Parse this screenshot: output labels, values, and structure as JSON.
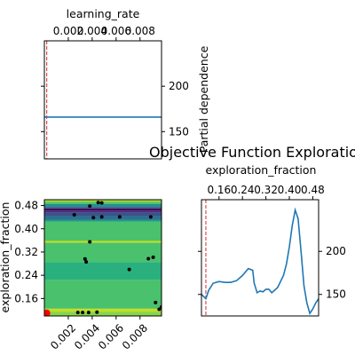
{
  "title": "Objective Function Exploration",
  "chart_data": [
    {
      "type": "line",
      "name": "pd-learning-rate",
      "xlabel": "learning_rate",
      "ylabel": "Partial dependence",
      "xlim": [
        0.0,
        0.0098
      ],
      "ylim": [
        120,
        250
      ],
      "xticks": [
        0.002,
        0.004,
        0.006,
        0.008
      ],
      "xtick_labels": [
        "0.002",
        "0.004",
        "0.006",
        "0.008"
      ],
      "yticks": [
        150,
        200
      ],
      "ytick_labels": [
        "150",
        "200"
      ],
      "x": [
        0.0,
        0.0098
      ],
      "y": [
        166,
        166
      ],
      "vline": 0.0002,
      "line_color": "#1f77b4",
      "vline_color": "#d62728"
    },
    {
      "type": "heatmap",
      "name": "contour-learning-rate-vs-exploration-fraction",
      "xlabel": "",
      "ylabel": "exploration_fraction",
      "xlim": [
        0.0,
        0.0098
      ],
      "ylim": [
        0.1,
        0.5
      ],
      "xticks": [
        0.002,
        0.004,
        0.006,
        0.008
      ],
      "xtick_labels": [
        "0.002",
        "0.004",
        "0.006",
        "0.008"
      ],
      "yticks": [
        0.16,
        0.24,
        0.32,
        0.4,
        0.48
      ],
      "ytick_labels": [
        "0.16",
        "0.24",
        "0.32",
        "0.40",
        "0.48"
      ],
      "bands": [
        {
          "from": 0.1,
          "to": 0.115,
          "color": "#87d549"
        },
        {
          "from": 0.115,
          "to": 0.125,
          "color": "#c2df23"
        },
        {
          "from": 0.125,
          "to": 0.225,
          "color": "#4ac16d"
        },
        {
          "from": 0.225,
          "to": 0.285,
          "color": "#2ab07f"
        },
        {
          "from": 0.285,
          "to": 0.352,
          "color": "#4ac16d"
        },
        {
          "from": 0.352,
          "to": 0.356,
          "color": "#c2df23"
        },
        {
          "from": 0.356,
          "to": 0.425,
          "color": "#4ac16d"
        },
        {
          "from": 0.425,
          "to": 0.43,
          "color": "#1e9b8a"
        },
        {
          "from": 0.43,
          "to": 0.445,
          "color": "#2c728e"
        },
        {
          "from": 0.445,
          "to": 0.455,
          "color": "#3b528b"
        },
        {
          "from": 0.455,
          "to": 0.463,
          "color": "#472d7b"
        },
        {
          "from": 0.463,
          "to": 0.47,
          "color": "#440154"
        },
        {
          "from": 0.47,
          "to": 0.478,
          "color": "#31688e"
        },
        {
          "from": 0.478,
          "to": 0.486,
          "color": "#21918c"
        },
        {
          "from": 0.486,
          "to": 0.494,
          "color": "#5ec962"
        },
        {
          "from": 0.494,
          "to": 0.5,
          "color": "#b5de2b"
        }
      ],
      "hline": {
        "y": 0.356,
        "color": "#c2df23"
      },
      "points": [
        [
          0.0002,
          0.11
        ],
        [
          0.0025,
          0.448
        ],
        [
          0.0038,
          0.478
        ],
        [
          0.0045,
          0.49
        ],
        [
          0.0048,
          0.489
        ],
        [
          0.0041,
          0.438
        ],
        [
          0.0034,
          0.296
        ],
        [
          0.0035,
          0.286
        ],
        [
          0.0038,
          0.355
        ],
        [
          0.0048,
          0.441
        ],
        [
          0.0063,
          0.441
        ],
        [
          0.0071,
          0.26
        ],
        [
          0.0089,
          0.441
        ],
        [
          0.0087,
          0.297
        ],
        [
          0.0091,
          0.302
        ],
        [
          0.0093,
          0.146
        ],
        [
          0.0096,
          0.123
        ],
        [
          0.0098,
          0.131
        ],
        [
          0.0028,
          0.112
        ],
        [
          0.0032,
          0.112
        ],
        [
          0.0037,
          0.112
        ],
        [
          0.0044,
          0.113
        ]
      ],
      "points_color": "#000000",
      "best_point": [
        0.0002,
        0.11
      ],
      "best_color": "#ff0000"
    },
    {
      "type": "line",
      "name": "pd-exploration-fraction",
      "xlabel": "exploration_fraction",
      "ylabel": "",
      "xlim": [
        0.1,
        0.5
      ],
      "ylim": [
        125,
        260
      ],
      "xticks": [
        0.16,
        0.24,
        0.32,
        0.4,
        0.48
      ],
      "xtick_labels": [
        "0.16",
        "0.24",
        "0.32",
        "0.40",
        "0.48"
      ],
      "yticks": [
        150,
        200
      ],
      "ytick_labels": [
        "150",
        "200"
      ],
      "x": [
        0.1,
        0.115,
        0.125,
        0.14,
        0.16,
        0.18,
        0.2,
        0.22,
        0.24,
        0.26,
        0.275,
        0.28,
        0.29,
        0.3,
        0.31,
        0.32,
        0.33,
        0.34,
        0.36,
        0.38,
        0.39,
        0.4,
        0.41,
        0.42,
        0.43,
        0.44,
        0.45,
        0.46,
        0.47,
        0.48,
        0.49,
        0.5
      ],
      "y": [
        150,
        145,
        155,
        163,
        165,
        164,
        164,
        166,
        172,
        180,
        178,
        163,
        152,
        154,
        153,
        156,
        156,
        152,
        158,
        172,
        185,
        205,
        230,
        248,
        238,
        200,
        160,
        140,
        128,
        133,
        140,
        145
      ],
      "vline": 0.115,
      "line_color": "#1f77b4",
      "vline_color": "#d62728"
    }
  ]
}
